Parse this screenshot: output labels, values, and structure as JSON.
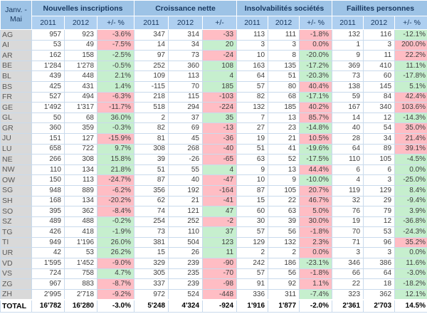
{
  "colors": {
    "header_bg": "#9dc3e6",
    "subheader_bg": "#aecff0",
    "canton_col_bg": "#d9d9d9",
    "good_bg": "#c6efce",
    "bad_bg": "#ffbdc4",
    "grid": "#c9daec",
    "header_text": "#17375e",
    "canton_text": "#595959",
    "value_text": "#3f3f3f",
    "total_text": "#000000"
  },
  "chart_data": {
    "type": "table",
    "corner_label": [
      "Janv. -",
      "Mai"
    ],
    "groups": [
      {
        "label": "Nouvelles inscriptions",
        "subcols": [
          "2011",
          "2012",
          "+/- %"
        ]
      },
      {
        "label": "Croissance nette",
        "subcols": [
          "2011",
          "2012",
          "+/-"
        ]
      },
      {
        "label": "Insolvabilités sociétés",
        "subcols": [
          "2011",
          "2012",
          "+/- %"
        ]
      },
      {
        "label": "Faillites personnes",
        "subcols": [
          "2011",
          "2012",
          "+/- %"
        ]
      }
    ],
    "rows": [
      {
        "canton": "AG",
        "values": [
          "957",
          "923",
          "-3.6%",
          "347",
          "314",
          "-33",
          "113",
          "111",
          "-1.8%",
          "132",
          "116",
          "-12.1%"
        ],
        "flags": [
          "r",
          "r",
          "r",
          "g"
        ]
      },
      {
        "canton": "AI",
        "values": [
          "53",
          "49",
          "-7.5%",
          "14",
          "34",
          "20",
          "3",
          "3",
          "0.0%",
          "1",
          "3",
          "200.0%"
        ],
        "flags": [
          "r",
          "g",
          "r",
          "r"
        ]
      },
      {
        "canton": "AR",
        "values": [
          "162",
          "158",
          "-2.5%",
          "97",
          "73",
          "-24",
          "10",
          "8",
          "-20.0%",
          "9",
          "11",
          "22.2%"
        ],
        "flags": [
          "g",
          "r",
          "g",
          "r"
        ]
      },
      {
        "canton": "BE",
        "values": [
          "1'284",
          "1'278",
          "-0.5%",
          "252",
          "360",
          "108",
          "163",
          "135",
          "-17.2%",
          "369",
          "410",
          "11.1%"
        ],
        "flags": [
          "g",
          "g",
          "g",
          "g"
        ]
      },
      {
        "canton": "BL",
        "values": [
          "439",
          "448",
          "2.1%",
          "109",
          "113",
          "4",
          "64",
          "51",
          "-20.3%",
          "73",
          "60",
          "-17.8%"
        ],
        "flags": [
          "g",
          "g",
          "g",
          "g"
        ]
      },
      {
        "canton": "BS",
        "values": [
          "425",
          "431",
          "1.4%",
          "-115",
          "70",
          "185",
          "57",
          "80",
          "40.4%",
          "138",
          "145",
          "5.1%"
        ],
        "flags": [
          "g",
          "g",
          "r",
          "g"
        ]
      },
      {
        "canton": "FR",
        "values": [
          "527",
          "494",
          "-6.3%",
          "218",
          "115",
          "-103",
          "82",
          "68",
          "-17.1%",
          "59",
          "84",
          "42.4%"
        ],
        "flags": [
          "r",
          "r",
          "g",
          "r"
        ]
      },
      {
        "canton": "GE",
        "values": [
          "1'492",
          "1'317",
          "-11.7%",
          "518",
          "294",
          "-224",
          "132",
          "185",
          "40.2%",
          "167",
          "340",
          "103.6%"
        ],
        "flags": [
          "r",
          "r",
          "r",
          "r"
        ]
      },
      {
        "canton": "GL",
        "values": [
          "50",
          "68",
          "36.0%",
          "2",
          "37",
          "35",
          "7",
          "13",
          "85.7%",
          "14",
          "12",
          "-14.3%"
        ],
        "flags": [
          "g",
          "g",
          "r",
          "g"
        ]
      },
      {
        "canton": "GR",
        "values": [
          "360",
          "359",
          "-0.3%",
          "82",
          "69",
          "-13",
          "27",
          "23",
          "-14.8%",
          "40",
          "54",
          "35.0%"
        ],
        "flags": [
          "g",
          "r",
          "g",
          "r"
        ]
      },
      {
        "canton": "JU",
        "values": [
          "151",
          "127",
          "-15.9%",
          "81",
          "45",
          "-36",
          "19",
          "21",
          "10.5%",
          "28",
          "34",
          "21.4%"
        ],
        "flags": [
          "r",
          "r",
          "r",
          "r"
        ]
      },
      {
        "canton": "LU",
        "values": [
          "658",
          "722",
          "9.7%",
          "308",
          "268",
          "-40",
          "51",
          "41",
          "-19.6%",
          "64",
          "89",
          "39.1%"
        ],
        "flags": [
          "g",
          "r",
          "g",
          "r"
        ]
      },
      {
        "canton": "NE",
        "values": [
          "266",
          "308",
          "15.8%",
          "39",
          "-26",
          "-65",
          "63",
          "52",
          "-17.5%",
          "110",
          "105",
          "-4.5%"
        ],
        "flags": [
          "g",
          "r",
          "g",
          "g"
        ]
      },
      {
        "canton": "NW",
        "values": [
          "110",
          "134",
          "21.8%",
          "51",
          "55",
          "4",
          "9",
          "13",
          "44.4%",
          "6",
          "6",
          "0.0%"
        ],
        "flags": [
          "g",
          "g",
          "r",
          "g"
        ]
      },
      {
        "canton": "OW",
        "values": [
          "150",
          "113",
          "-24.7%",
          "87",
          "40",
          "-47",
          "10",
          "9",
          "-10.0%",
          "4",
          "3",
          "-25.0%"
        ],
        "flags": [
          "r",
          "r",
          "g",
          "g"
        ]
      },
      {
        "canton": "SG",
        "values": [
          "948",
          "889",
          "-6.2%",
          "356",
          "192",
          "-164",
          "87",
          "105",
          "20.7%",
          "119",
          "129",
          "8.4%"
        ],
        "flags": [
          "r",
          "r",
          "r",
          "g"
        ]
      },
      {
        "canton": "SH",
        "values": [
          "168",
          "134",
          "-20.2%",
          "62",
          "21",
          "-41",
          "15",
          "22",
          "46.7%",
          "32",
          "29",
          "-9.4%"
        ],
        "flags": [
          "r",
          "r",
          "r",
          "g"
        ]
      },
      {
        "canton": "SO",
        "values": [
          "395",
          "362",
          "-8.4%",
          "74",
          "121",
          "47",
          "60",
          "63",
          "5.0%",
          "76",
          "79",
          "3.9%"
        ],
        "flags": [
          "r",
          "g",
          "r",
          "g"
        ]
      },
      {
        "canton": "SZ",
        "values": [
          "489",
          "488",
          "-0.2%",
          "254",
          "252",
          "-2",
          "30",
          "39",
          "30.0%",
          "19",
          "12",
          "-36.8%"
        ],
        "flags": [
          "g",
          "r",
          "r",
          "g"
        ]
      },
      {
        "canton": "TG",
        "values": [
          "426",
          "418",
          "-1.9%",
          "73",
          "110",
          "37",
          "57",
          "56",
          "-1.8%",
          "70",
          "53",
          "-24.3%"
        ],
        "flags": [
          "g",
          "g",
          "r",
          "g"
        ]
      },
      {
        "canton": "TI",
        "values": [
          "949",
          "1'196",
          "26.0%",
          "381",
          "504",
          "123",
          "129",
          "132",
          "2.3%",
          "71",
          "96",
          "35.2%"
        ],
        "flags": [
          "g",
          "g",
          "r",
          "r"
        ]
      },
      {
        "canton": "UR",
        "values": [
          "42",
          "53",
          "26.2%",
          "15",
          "26",
          "11",
          "2",
          "2",
          "0.0%",
          "3",
          "3",
          "0.0%"
        ],
        "flags": [
          "g",
          "g",
          "r",
          "g"
        ]
      },
      {
        "canton": "VD",
        "values": [
          "1'595",
          "1'452",
          "-9.0%",
          "329",
          "239",
          "-90",
          "242",
          "186",
          "-23.1%",
          "346",
          "386",
          "11.6%"
        ],
        "flags": [
          "r",
          "r",
          "g",
          "g"
        ]
      },
      {
        "canton": "VS",
        "values": [
          "724",
          "758",
          "4.7%",
          "305",
          "235",
          "-70",
          "57",
          "56",
          "-1.8%",
          "66",
          "64",
          "-3.0%"
        ],
        "flags": [
          "g",
          "r",
          "r",
          "g"
        ]
      },
      {
        "canton": "ZG",
        "values": [
          "967",
          "883",
          "-8.7%",
          "337",
          "239",
          "-98",
          "91",
          "92",
          "1.1%",
          "22",
          "18",
          "-18.2%"
        ],
        "flags": [
          "r",
          "r",
          "r",
          "g"
        ]
      },
      {
        "canton": "ZH",
        "values": [
          "2'995",
          "2'718",
          "-9.2%",
          "972",
          "524",
          "-448",
          "336",
          "311",
          "-7.4%",
          "323",
          "362",
          "12.1%"
        ],
        "flags": [
          "r",
          "r",
          "g",
          "g"
        ]
      }
    ],
    "total": {
      "label": "TOTAL",
      "values": [
        "16'782",
        "16'280",
        "-3.0%",
        "5'248",
        "4'324",
        "-924",
        "1'916",
        "1'877",
        "-2.0%",
        "2'361",
        "2'703",
        "14.5%"
      ],
      "flags": [
        null,
        null,
        null,
        null
      ]
    }
  }
}
